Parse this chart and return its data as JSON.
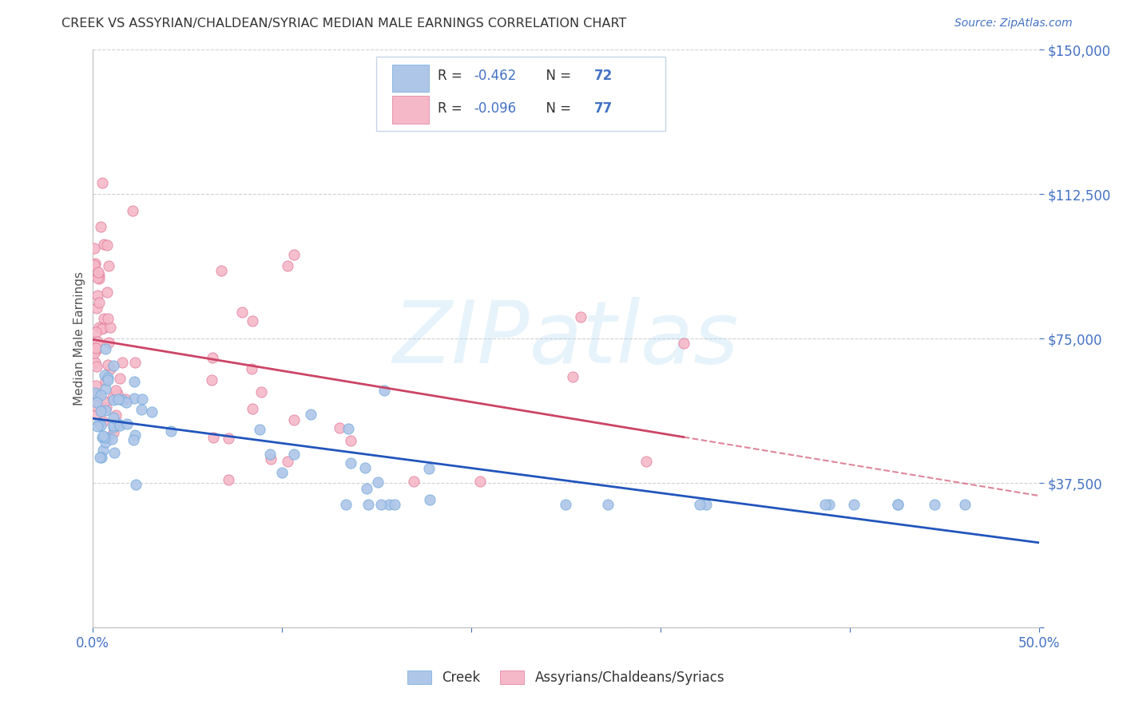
{
  "title": "CREEK VS ASSYRIAN/CHALDEAN/SYRIAC MEDIAN MALE EARNINGS CORRELATION CHART",
  "source": "Source: ZipAtlas.com",
  "ylabel": "Median Male Earnings",
  "xmin": 0.0,
  "xmax": 0.5,
  "ymin": 0,
  "ymax": 150000,
  "yticks": [
    0,
    37500,
    75000,
    112500,
    150000
  ],
  "ytick_labels": [
    "",
    "$37,500",
    "$75,000",
    "$112,500",
    "$150,000"
  ],
  "xticks": [
    0.0,
    0.1,
    0.2,
    0.3,
    0.4,
    0.5
  ],
  "xtick_labels": [
    "0.0%",
    "",
    "",
    "",
    "",
    "50.0%"
  ],
  "creek_color": "#aec6e8",
  "creek_edge_color": "#6fa8dc",
  "assyrian_color": "#f5b8c8",
  "assyrian_edge_color": "#e07898",
  "creek_line_color": "#2255bb",
  "assyrian_line_color": "#cc4466",
  "background_color": "#ffffff",
  "grid_color": "#cccccc",
  "title_color": "#333333",
  "axis_label_color": "#555555",
  "tick_color": "#4472c4",
  "source_color": "#4472c4",
  "legend_r_color": "#4472c4",
  "legend_n_color": "#4472c4",
  "legend_text_color": "#333333",
  "creek_r": -0.462,
  "creek_n": 72,
  "assyrian_r": -0.096,
  "assyrian_n": 77,
  "legend_label_creek": "Creek",
  "legend_label_assyrian": "Assyrians/Chaldeans/Syriacs",
  "watermark": "ZIPatlas",
  "creek_seed": 42,
  "assyrian_seed": 99
}
